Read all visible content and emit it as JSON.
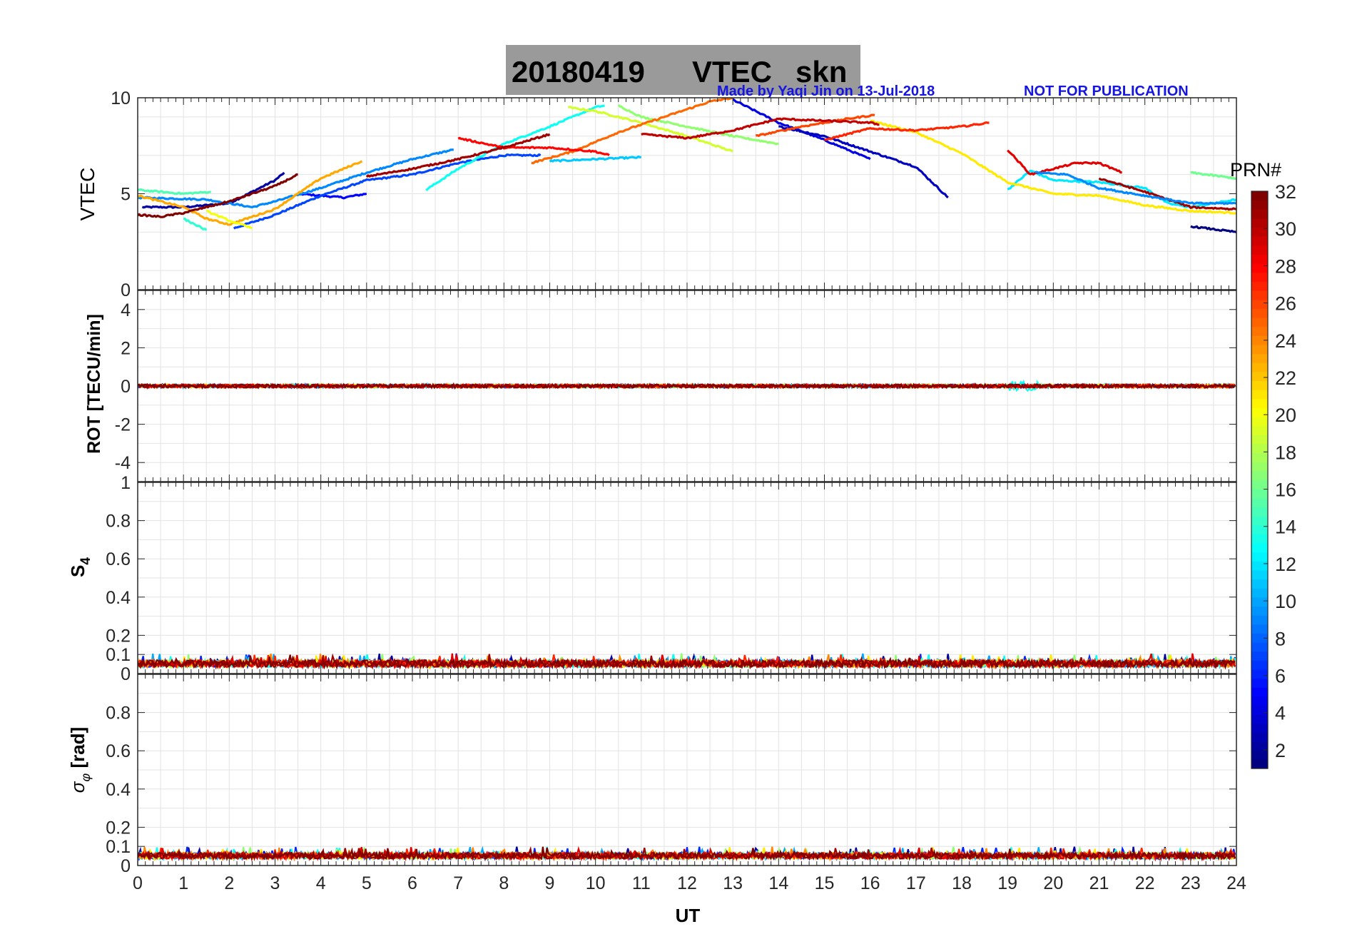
{
  "title": {
    "date": "20180419",
    "product": "VTEC",
    "station": "skn",
    "credit": "Made by Yaqi Jin on 13-Jul-2018",
    "notice": "NOT FOR PUBLICATION",
    "bg_color": "#9a9a9a",
    "credit_color": "#1515e0"
  },
  "chart_data": {
    "type": "line",
    "xlabel": "UT",
    "x_ticks": [
      "0",
      "1",
      "2",
      "3",
      "4",
      "5",
      "6",
      "7",
      "8",
      "9",
      "10",
      "11",
      "12",
      "13",
      "14",
      "15",
      "16",
      "17",
      "18",
      "19",
      "20",
      "21",
      "22",
      "23",
      "24"
    ],
    "xlim": [
      0,
      24
    ],
    "colorbar": {
      "title": "PRN#",
      "range": [
        1,
        32
      ],
      "ticks": [
        "2",
        "4",
        "6",
        "8",
        "10",
        "12",
        "14",
        "16",
        "18",
        "20",
        "22",
        "24",
        "26",
        "28",
        "30",
        "32"
      ],
      "colormap": "jet"
    },
    "panels": [
      {
        "id": "vtec",
        "ylabel": "VTEC",
        "ylim": [
          0,
          10
        ],
        "y_ticks": [
          {
            "v": 0,
            "t": "0"
          },
          {
            "v": 5,
            "t": "5"
          },
          {
            "v": 10,
            "t": "10"
          }
        ],
        "series": [
          {
            "prn": 2,
            "points": [
              [
                0.1,
                4.3
              ],
              [
                1.0,
                4.3
              ],
              [
                2.0,
                4.5
              ],
              [
                3.0,
                5.7
              ],
              [
                3.2,
                6.1
              ]
            ]
          },
          {
            "prn": 5,
            "points": [
              [
                3.5,
                5.0
              ],
              [
                4.5,
                4.8
              ],
              [
                5.0,
                5.0
              ]
            ]
          },
          {
            "prn": 7,
            "points": [
              [
                2.1,
                3.2
              ],
              [
                3.0,
                3.9
              ],
              [
                4.0,
                4.9
              ],
              [
                5.0,
                5.7
              ],
              [
                6.0,
                6.0
              ],
              [
                7.0,
                6.6
              ],
              [
                8.0,
                7.0
              ],
              [
                8.8,
                7.0
              ]
            ]
          },
          {
            "prn": 9,
            "points": [
              [
                0.0,
                4.8
              ],
              [
                1.5,
                4.7
              ],
              [
                2.5,
                4.3
              ],
              [
                3.0,
                4.6
              ],
              [
                4.0,
                5.3
              ],
              [
                5.0,
                6.1
              ],
              [
                6.0,
                6.8
              ],
              [
                6.9,
                7.3
              ]
            ]
          },
          {
            "prn": 11,
            "points": [
              [
                9.0,
                6.7
              ],
              [
                10.0,
                6.8
              ],
              [
                11.0,
                6.9
              ]
            ]
          },
          {
            "prn": 4,
            "points": [
              [
                13.0,
                9.9
              ],
              [
                14.0,
                8.7
              ],
              [
                15.0,
                7.8
              ],
              [
                16.0,
                6.8
              ]
            ]
          },
          {
            "prn": 3,
            "points": [
              [
                14.0,
                8.5
              ],
              [
                15.0,
                8.0
              ],
              [
                16.0,
                7.2
              ],
              [
                17.0,
                6.4
              ],
              [
                17.7,
                4.8
              ]
            ]
          },
          {
            "prn": 13,
            "points": [
              [
                6.3,
                5.2
              ],
              [
                7.0,
                6.3
              ],
              [
                8.0,
                7.6
              ],
              [
                9.0,
                8.5
              ],
              [
                10.0,
                9.5
              ],
              [
                10.2,
                9.6
              ]
            ]
          },
          {
            "prn": 15,
            "points": [
              [
                0.0,
                5.2
              ],
              [
                1.0,
                5.0
              ],
              [
                1.6,
                5.1
              ]
            ]
          },
          {
            "prn": 12,
            "points": [
              [
                19.0,
                5.2
              ],
              [
                19.5,
                6.2
              ],
              [
                20.0,
                5.7
              ],
              [
                21.0,
                5.6
              ],
              [
                22.0,
                5.3
              ],
              [
                22.5,
                4.5
              ],
              [
                23.0,
                4.3
              ],
              [
                24.0,
                4.7
              ]
            ]
          },
          {
            "prn": 19,
            "points": [
              [
                9.4,
                9.5
              ],
              [
                10.0,
                9.3
              ],
              [
                11.0,
                8.7
              ],
              [
                12.0,
                8.0
              ],
              [
                13.0,
                7.2
              ]
            ]
          },
          {
            "prn": 17,
            "points": [
              [
                10.5,
                9.6
              ],
              [
                11.0,
                9.0
              ],
              [
                12.0,
                8.5
              ],
              [
                13.0,
                8.0
              ],
              [
                14.0,
                7.6
              ]
            ]
          },
          {
            "prn": 21,
            "points": [
              [
                16.0,
                8.8
              ],
              [
                17.0,
                8.2
              ],
              [
                18.0,
                7.1
              ],
              [
                19.0,
                5.6
              ],
              [
                20.0,
                5.0
              ],
              [
                21.0,
                4.9
              ],
              [
                22.0,
                4.4
              ],
              [
                23.0,
                4.1
              ],
              [
                24.0,
                4.0
              ]
            ]
          },
          {
            "prn": 23,
            "points": [
              [
                0.0,
                4.9
              ],
              [
                1.0,
                4.3
              ],
              [
                1.5,
                3.7
              ],
              [
                2.0,
                3.4
              ],
              [
                3.0,
                4.2
              ],
              [
                4.0,
                5.8
              ],
              [
                4.9,
                6.7
              ]
            ]
          },
          {
            "prn": 25,
            "points": [
              [
                8.6,
                6.6
              ],
              [
                9.5,
                7.2
              ],
              [
                10.5,
                8.2
              ],
              [
                11.5,
                9.0
              ],
              [
                12.5,
                9.8
              ],
              [
                13.0,
                10.0
              ]
            ]
          },
          {
            "prn": 26,
            "points": [
              [
                13.5,
                8.0
              ],
              [
                14.5,
                8.5
              ],
              [
                15.5,
                8.9
              ],
              [
                16.1,
                9.1
              ]
            ]
          },
          {
            "prn": 28,
            "points": [
              [
                7.0,
                7.9
              ],
              [
                8.0,
                7.4
              ],
              [
                9.0,
                7.4
              ],
              [
                10.0,
                7.2
              ],
              [
                10.3,
                7.0
              ]
            ]
          },
          {
            "prn": 27,
            "points": [
              [
                15.0,
                7.8
              ],
              [
                16.0,
                8.4
              ],
              [
                17.0,
                8.3
              ],
              [
                18.0,
                8.5
              ],
              [
                18.6,
                8.7
              ]
            ]
          },
          {
            "prn": 29,
            "points": [
              [
                19.0,
                7.3
              ],
              [
                19.5,
                6.0
              ],
              [
                20.0,
                6.3
              ],
              [
                20.5,
                6.6
              ],
              [
                21.0,
                6.6
              ],
              [
                21.5,
                6.1
              ]
            ]
          },
          {
            "prn": 31,
            "points": [
              [
                5.0,
                5.9
              ],
              [
                6.0,
                6.3
              ],
              [
                7.0,
                6.8
              ],
              [
                8.0,
                7.4
              ],
              [
                9.0,
                8.1
              ]
            ]
          },
          {
            "prn": 32,
            "points": [
              [
                0.0,
                3.9
              ],
              [
                0.5,
                3.8
              ],
              [
                1.0,
                4.0
              ],
              [
                2.0,
                4.6
              ],
              [
                3.0,
                5.4
              ],
              [
                3.5,
                6.0
              ]
            ]
          },
          {
            "prn": 30,
            "points": [
              [
                11.0,
                8.1
              ],
              [
                12.0,
                7.9
              ],
              [
                13.0,
                8.3
              ],
              [
                14.0,
                8.9
              ],
              [
                15.0,
                8.8
              ],
              [
                16.0,
                8.7
              ],
              [
                16.2,
                8.6
              ]
            ]
          },
          {
            "prn": 31,
            "points": [
              [
                21.0,
                5.8
              ],
              [
                22.0,
                5.1
              ],
              [
                23.0,
                4.3
              ],
              [
                24.0,
                4.2
              ]
            ]
          },
          {
            "prn": 14,
            "points": [
              [
                1.0,
                3.7
              ],
              [
                1.5,
                3.1
              ]
            ]
          },
          {
            "prn": 20,
            "points": [
              [
                1.5,
                4.1
              ],
              [
                2.0,
                3.6
              ],
              [
                2.5,
                3.2
              ]
            ]
          },
          {
            "prn": 1,
            "points": [
              [
                23.0,
                3.3
              ],
              [
                24.0,
                3.0
              ]
            ]
          },
          {
            "prn": 16,
            "points": [
              [
                23.0,
                6.1
              ],
              [
                24.0,
                5.8
              ]
            ]
          },
          {
            "prn": 9,
            "points": [
              [
                19.6,
                6.1
              ],
              [
                20.3,
                6.0
              ],
              [
                21.0,
                5.3
              ],
              [
                22.0,
                4.9
              ],
              [
                23.0,
                4.5
              ],
              [
                24.0,
                4.5
              ]
            ]
          }
        ]
      },
      {
        "id": "rot",
        "ylabel": "ROT [TECU/min]",
        "ylim": [
          -5,
          5
        ],
        "y_ticks": [
          {
            "v": -4,
            "t": "-4"
          },
          {
            "v": -2,
            "t": "-2"
          },
          {
            "v": 0,
            "t": "0"
          },
          {
            "v": 2,
            "t": "2"
          },
          {
            "v": 4,
            "t": "4"
          }
        ],
        "noise": {
          "base": 0.0,
          "amplitude": 0.18
        },
        "events": [
          {
            "x": [
              19.0,
              19.7
            ],
            "amplitude": 0.5,
            "prn": 13
          }
        ]
      },
      {
        "id": "s4",
        "ylabel": "S4",
        "ylim": [
          0,
          1
        ],
        "y_ticks": [
          {
            "v": 0,
            "t": "0"
          },
          {
            "v": 0.1,
            "t": "0.1"
          },
          {
            "v": 0.2,
            "t": "0.2"
          },
          {
            "v": 0.4,
            "t": "0.4"
          },
          {
            "v": 0.6,
            "t": "0.6"
          },
          {
            "v": 0.8,
            "t": "0.8"
          },
          {
            "v": 1,
            "t": "1"
          }
        ],
        "noise": {
          "base": 0.045,
          "amplitude": 0.04
        }
      },
      {
        "id": "sigma",
        "ylabel": "σφ [rad]",
        "ylim": [
          0,
          1
        ],
        "y_ticks": [
          {
            "v": 0,
            "t": "0"
          },
          {
            "v": 0.1,
            "t": "0.1"
          },
          {
            "v": 0.2,
            "t": "0.2"
          },
          {
            "v": 0.4,
            "t": "0.4"
          },
          {
            "v": 0.6,
            "t": "0.6"
          },
          {
            "v": 0.8,
            "t": "0.8"
          }
        ],
        "noise": {
          "base": 0.045,
          "amplitude": 0.035
        }
      }
    ]
  }
}
